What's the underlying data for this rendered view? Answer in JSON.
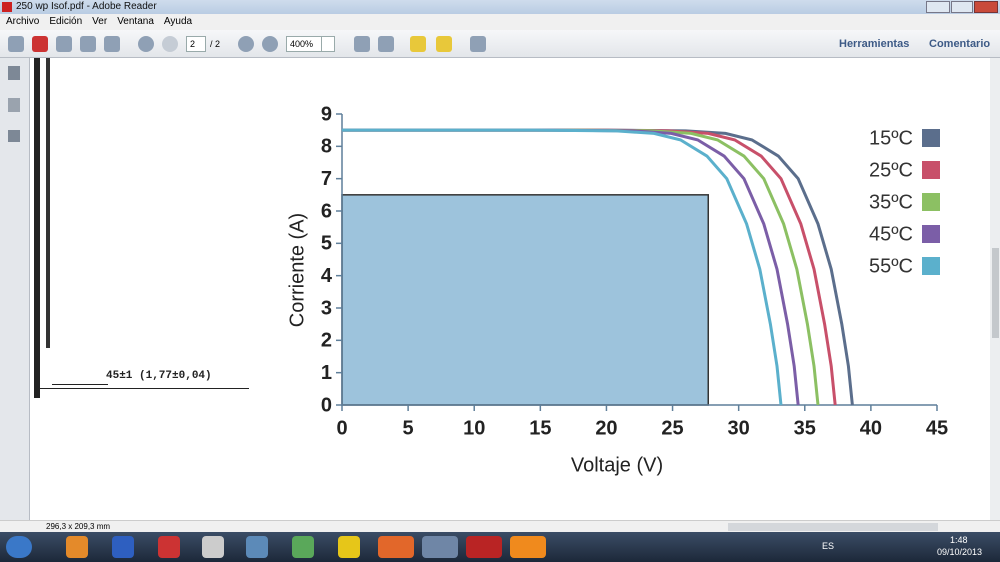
{
  "window": {
    "title": "250 wp Isof.pdf - Adobe Reader"
  },
  "menu": [
    "Archivo",
    "Edición",
    "Ver",
    "Ventana",
    "Ayuda"
  ],
  "toolbar": {
    "page": "2",
    "pages": "/ 2",
    "zoom": "400%",
    "tools": "Herramientas",
    "comment": "Comentario"
  },
  "drawing_note": "45±1 (1,77±0,04)",
  "status": {
    "size": "296,3 x 209,3 mm"
  },
  "taskbar": {
    "lang": "ES",
    "time": "1:48",
    "date": "09/10/2013"
  },
  "chart_data": {
    "type": "line",
    "xlabel": "Voltaje (V)",
    "ylabel": "Corriente (A)",
    "xlim": [
      0,
      45
    ],
    "xticks": [
      0,
      5,
      10,
      15,
      20,
      25,
      30,
      35,
      40,
      45
    ],
    "ylim": [
      0,
      9
    ],
    "yticks": [
      0,
      1,
      2,
      3,
      4,
      5,
      6,
      7,
      8,
      9
    ],
    "rectangle": {
      "x": 27.7,
      "y": 6.5,
      "color": "#9dc3dc"
    },
    "series": [
      {
        "name": "15ºC",
        "color": "#5b6e8c",
        "x": [
          0,
          20,
          26,
          29,
          31,
          33,
          34.5,
          36,
          37,
          37.8,
          38.3,
          38.6
        ],
        "values": [
          8.5,
          8.5,
          8.48,
          8.4,
          8.2,
          7.7,
          7,
          5.6,
          4.2,
          2.5,
          1.2,
          0
        ]
      },
      {
        "name": "25ºC",
        "color": "#c8506a",
        "x": [
          0,
          18.7,
          24.7,
          27.7,
          29.7,
          31.7,
          33.2,
          34.7,
          35.7,
          36.5,
          37,
          37.3
        ],
        "values": [
          8.5,
          8.5,
          8.48,
          8.4,
          8.2,
          7.7,
          7,
          5.6,
          4.2,
          2.5,
          1.2,
          0
        ]
      },
      {
        "name": "35ºC",
        "color": "#8cc063",
        "x": [
          0,
          17.4,
          23.4,
          26.4,
          28.4,
          30.4,
          31.9,
          33.4,
          34.4,
          35.2,
          35.7,
          36
        ],
        "values": [
          8.5,
          8.5,
          8.48,
          8.4,
          8.2,
          7.7,
          7,
          5.6,
          4.2,
          2.5,
          1.2,
          0
        ]
      },
      {
        "name": "45ºC",
        "color": "#7b5ea7",
        "x": [
          0,
          15.9,
          21.9,
          24.9,
          26.9,
          28.9,
          30.4,
          31.9,
          32.9,
          33.7,
          34.2,
          34.5
        ],
        "values": [
          8.5,
          8.5,
          8.48,
          8.4,
          8.2,
          7.7,
          7,
          5.6,
          4.2,
          2.5,
          1.2,
          0
        ]
      },
      {
        "name": "55ºC",
        "color": "#5bb0cc",
        "x": [
          0,
          14.6,
          20.6,
          23.6,
          25.6,
          27.6,
          29.1,
          30.6,
          31.6,
          32.4,
          32.9,
          33.2
        ],
        "values": [
          8.5,
          8.5,
          8.48,
          8.4,
          8.2,
          7.7,
          7,
          5.6,
          4.2,
          2.5,
          1.2,
          0
        ]
      }
    ]
  }
}
